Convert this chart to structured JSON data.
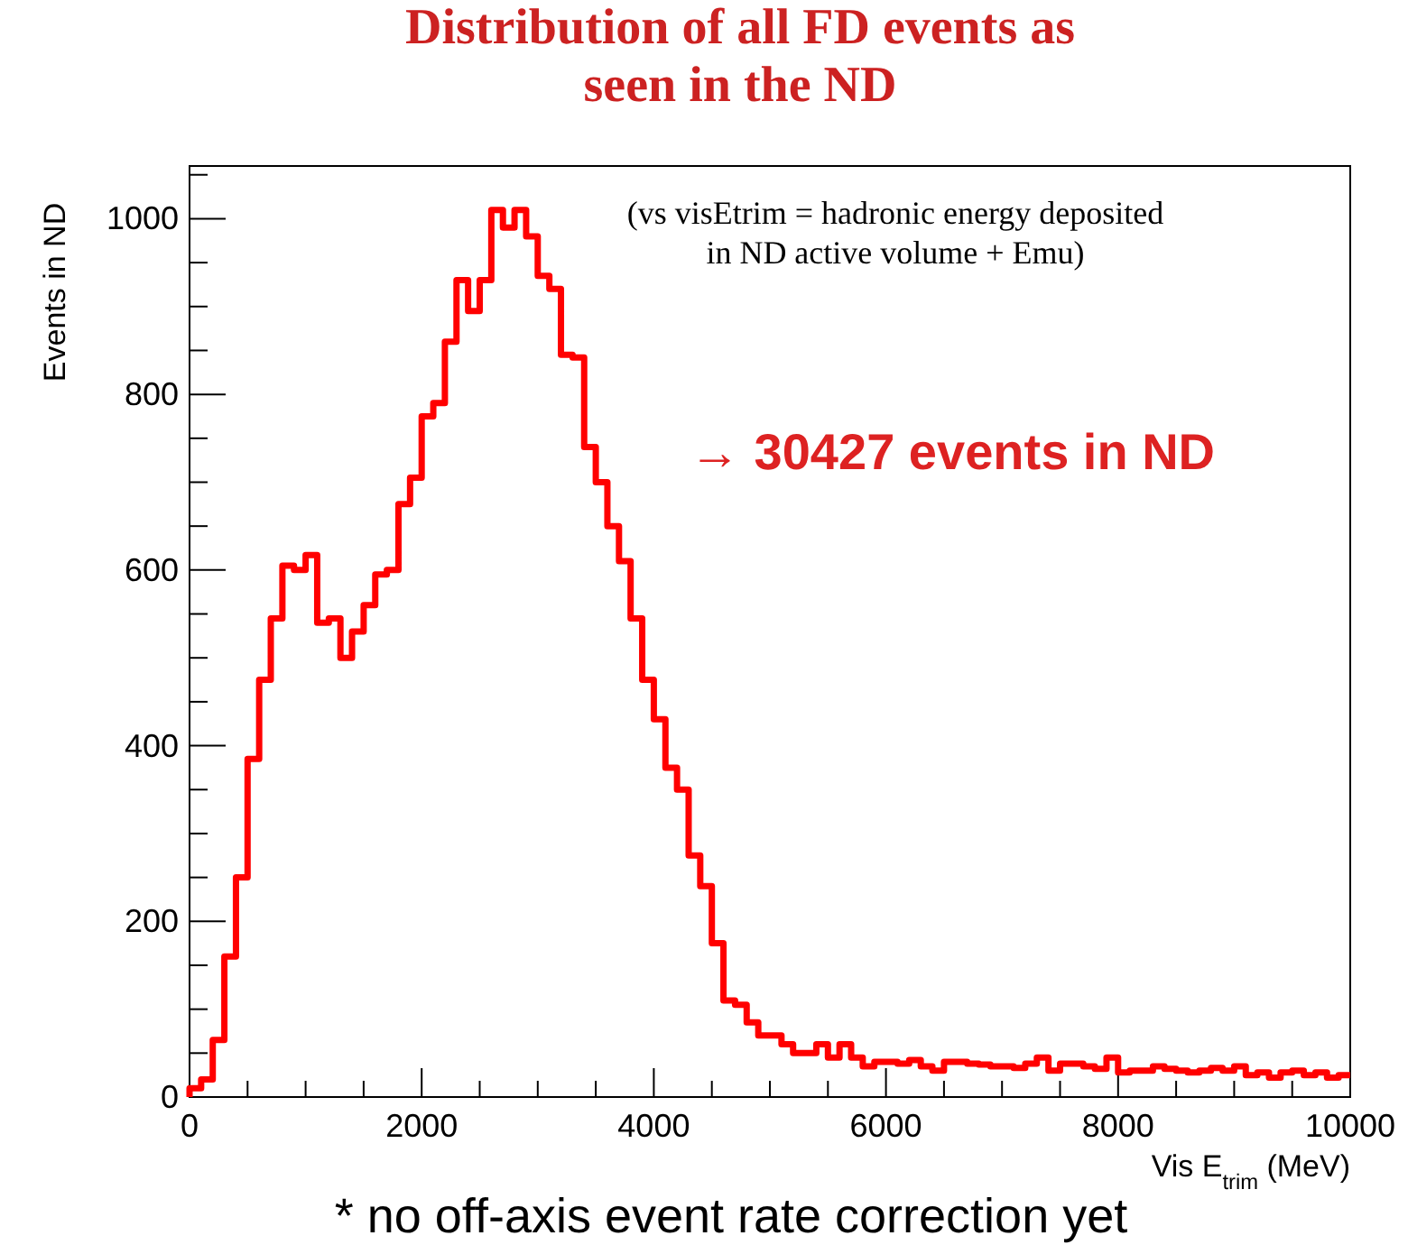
{
  "chart_data": {
    "type": "histogram",
    "title": "Distribution of all FD events as\nseen in the ND",
    "xlabel": "Vis E$_{trim}$ (MeV)",
    "ylabel": "Events in ND",
    "annotations": [
      "(vs visEtrim = hadronic energy deposited\nin ND active volume + Emu)",
      "→ 30427 events in ND",
      "* no off-axis event rate correction yet"
    ],
    "color": "#ff0000",
    "bins": [
      0,
      100,
      200,
      300,
      400,
      500,
      600,
      700,
      800,
      900,
      1000,
      1100,
      1200,
      1300,
      1400,
      1500,
      1600,
      1700,
      1800,
      1900,
      2000,
      2100,
      2200,
      2300,
      2400,
      2500,
      2600,
      2700,
      2800,
      2900,
      3000,
      3100,
      3200,
      3300,
      3400,
      3500,
      3600,
      3700,
      3800,
      3900,
      4000,
      4100,
      4200,
      4300,
      4400,
      4500,
      4600,
      4700,
      4800,
      4900,
      5000,
      5100,
      5200,
      5300,
      5400,
      5500,
      5600,
      5700,
      5800,
      5900,
      6000,
      6100,
      6200,
      6300,
      6400,
      6500,
      6600,
      6700,
      6800,
      6900,
      7000,
      7100,
      7200,
      7300,
      7400,
      7500,
      7600,
      7700,
      7800,
      7900,
      8000,
      8100,
      8200,
      8300,
      8400,
      8500,
      8600,
      8700,
      8800,
      8900,
      9000,
      9100,
      9200,
      9300,
      9400,
      9500,
      9600,
      9700,
      9800,
      9900,
      10000
    ],
    "values": [
      10,
      20,
      65,
      160,
      250,
      385,
      475,
      545,
      605,
      600,
      617,
      540,
      545,
      500,
      530,
      560,
      595,
      600,
      675,
      705,
      775,
      790,
      860,
      930,
      895,
      930,
      1010,
      990,
      1010,
      980,
      935,
      920,
      845,
      842,
      740,
      700,
      650,
      610,
      545,
      475,
      430,
      375,
      350,
      275,
      240,
      175,
      110,
      105,
      85,
      70,
      70,
      60,
      50,
      50,
      60,
      45,
      60,
      45,
      35,
      40,
      40,
      38,
      42,
      35,
      30,
      40,
      40,
      38,
      37,
      35,
      35,
      33,
      38,
      45,
      30,
      38,
      38,
      35,
      32,
      45,
      28,
      30,
      30,
      35,
      32,
      30,
      28,
      30,
      33,
      30,
      35,
      25,
      28,
      22,
      28,
      30,
      25,
      28,
      22,
      25
    ],
    "xlim": [
      0,
      10000
    ],
    "ylim": [
      0,
      1060
    ],
    "xticks": [
      0,
      {
        "value": 500,
        "label": null
      },
      {
        "value": 1000,
        "label": null
      },
      {
        "value": 1500,
        "label": null
      },
      2000,
      {
        "value": 2500,
        "label": null
      },
      {
        "value": 3000,
        "label": null
      },
      {
        "value": 3500,
        "label": null
      },
      4000,
      {
        "value": 4500,
        "label": null
      },
      {
        "value": 5000,
        "label": null
      },
      {
        "value": 5500,
        "label": null
      },
      6000,
      {
        "value": 6500,
        "label": null
      },
      {
        "value": 7000,
        "label": null
      },
      {
        "value": 7500,
        "label": null
      },
      8000,
      {
        "value": 8500,
        "label": null
      },
      {
        "value": 9000,
        "label": null
      },
      {
        "value": 9500,
        "label": null
      },
      10000
    ],
    "yticks": [
      0,
      {
        "value": 50,
        "label": null
      },
      {
        "value": 100,
        "label": null
      },
      {
        "value": 150,
        "label": null
      },
      200,
      {
        "value": 250,
        "label": null
      },
      {
        "value": 300,
        "label": null
      },
      {
        "value": 350,
        "label": null
      },
      400,
      {
        "value": 450,
        "label": null
      },
      {
        "value": 500,
        "label": null
      },
      {
        "value": 550,
        "label": null
      },
      600,
      {
        "value": 650,
        "label": null
      },
      {
        "value": 700,
        "label": null
      },
      {
        "value": 750,
        "label": null
      },
      800,
      {
        "value": 850,
        "label": null
      },
      {
        "value": 900,
        "label": null
      },
      {
        "value": 950,
        "label": null
      },
      1000,
      {
        "value": 1050,
        "label": null
      }
    ],
    "grid": false
  }
}
